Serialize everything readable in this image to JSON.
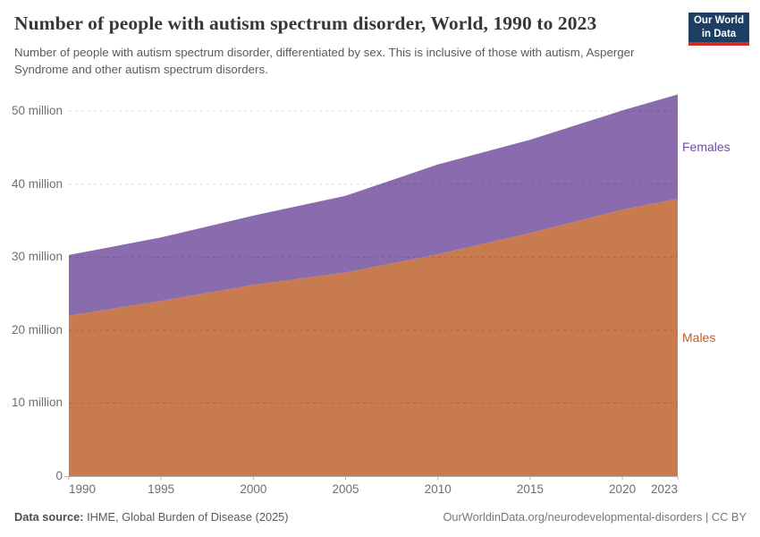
{
  "header": {
    "title": "Number of people with autism spectrum disorder, World, 1990 to 2023",
    "subtitle": "Number of people with autism spectrum disorder, differentiated by sex. This is inclusive of those with autism, Asperger Syndrome and other autism spectrum disorders.",
    "logo": {
      "line1": "Our World",
      "line2": "in Data"
    }
  },
  "chart_data": {
    "type": "area",
    "stacked": true,
    "title": "Number of people with autism spectrum disorder, World, 1990 to 2023",
    "xlabel": "",
    "ylabel": "",
    "x": [
      1990,
      1995,
      2000,
      2005,
      2010,
      2015,
      2020,
      2023
    ],
    "series": [
      {
        "name": "Males",
        "color": "#c87b4e",
        "label_color": "#bf5a2d",
        "values": [
          22.0,
          24.0,
          26.2,
          27.9,
          30.4,
          33.3,
          36.5,
          38.0
        ]
      },
      {
        "name": "Females",
        "color": "#8a6bae",
        "label_color": "#6d4ea0",
        "values": [
          8.3,
          8.7,
          9.5,
          10.5,
          12.3,
          12.8,
          13.6,
          14.3
        ]
      }
    ],
    "totals": [
      30.3,
      32.7,
      35.7,
      38.4,
      42.7,
      46.1,
      50.1,
      52.3
    ],
    "xlim": [
      1990,
      2023
    ],
    "ylim": [
      0,
      52.3
    ],
    "xticks": {
      "values": [
        1990,
        1995,
        2000,
        2005,
        2010,
        2015,
        2020,
        2023
      ],
      "labels": [
        "1990",
        "1995",
        "2000",
        "2005",
        "2010",
        "2015",
        "2020",
        "2023"
      ]
    },
    "yticks": {
      "values": [
        0,
        10,
        20,
        30,
        40,
        50
      ],
      "labels": [
        "0",
        "10 million",
        "20 million",
        "30 million",
        "40 million",
        "50 million"
      ]
    },
    "grid": "horizontal-dashed",
    "legend_position": "right-of-plot"
  },
  "footer": {
    "datasource_label": "Data source:",
    "datasource_text": " IHME, Global Burden of Disease (2025)",
    "link": "OurWorldinData.org/neurodevelopmental-disorders",
    "separator": " | ",
    "license": "CC BY"
  }
}
